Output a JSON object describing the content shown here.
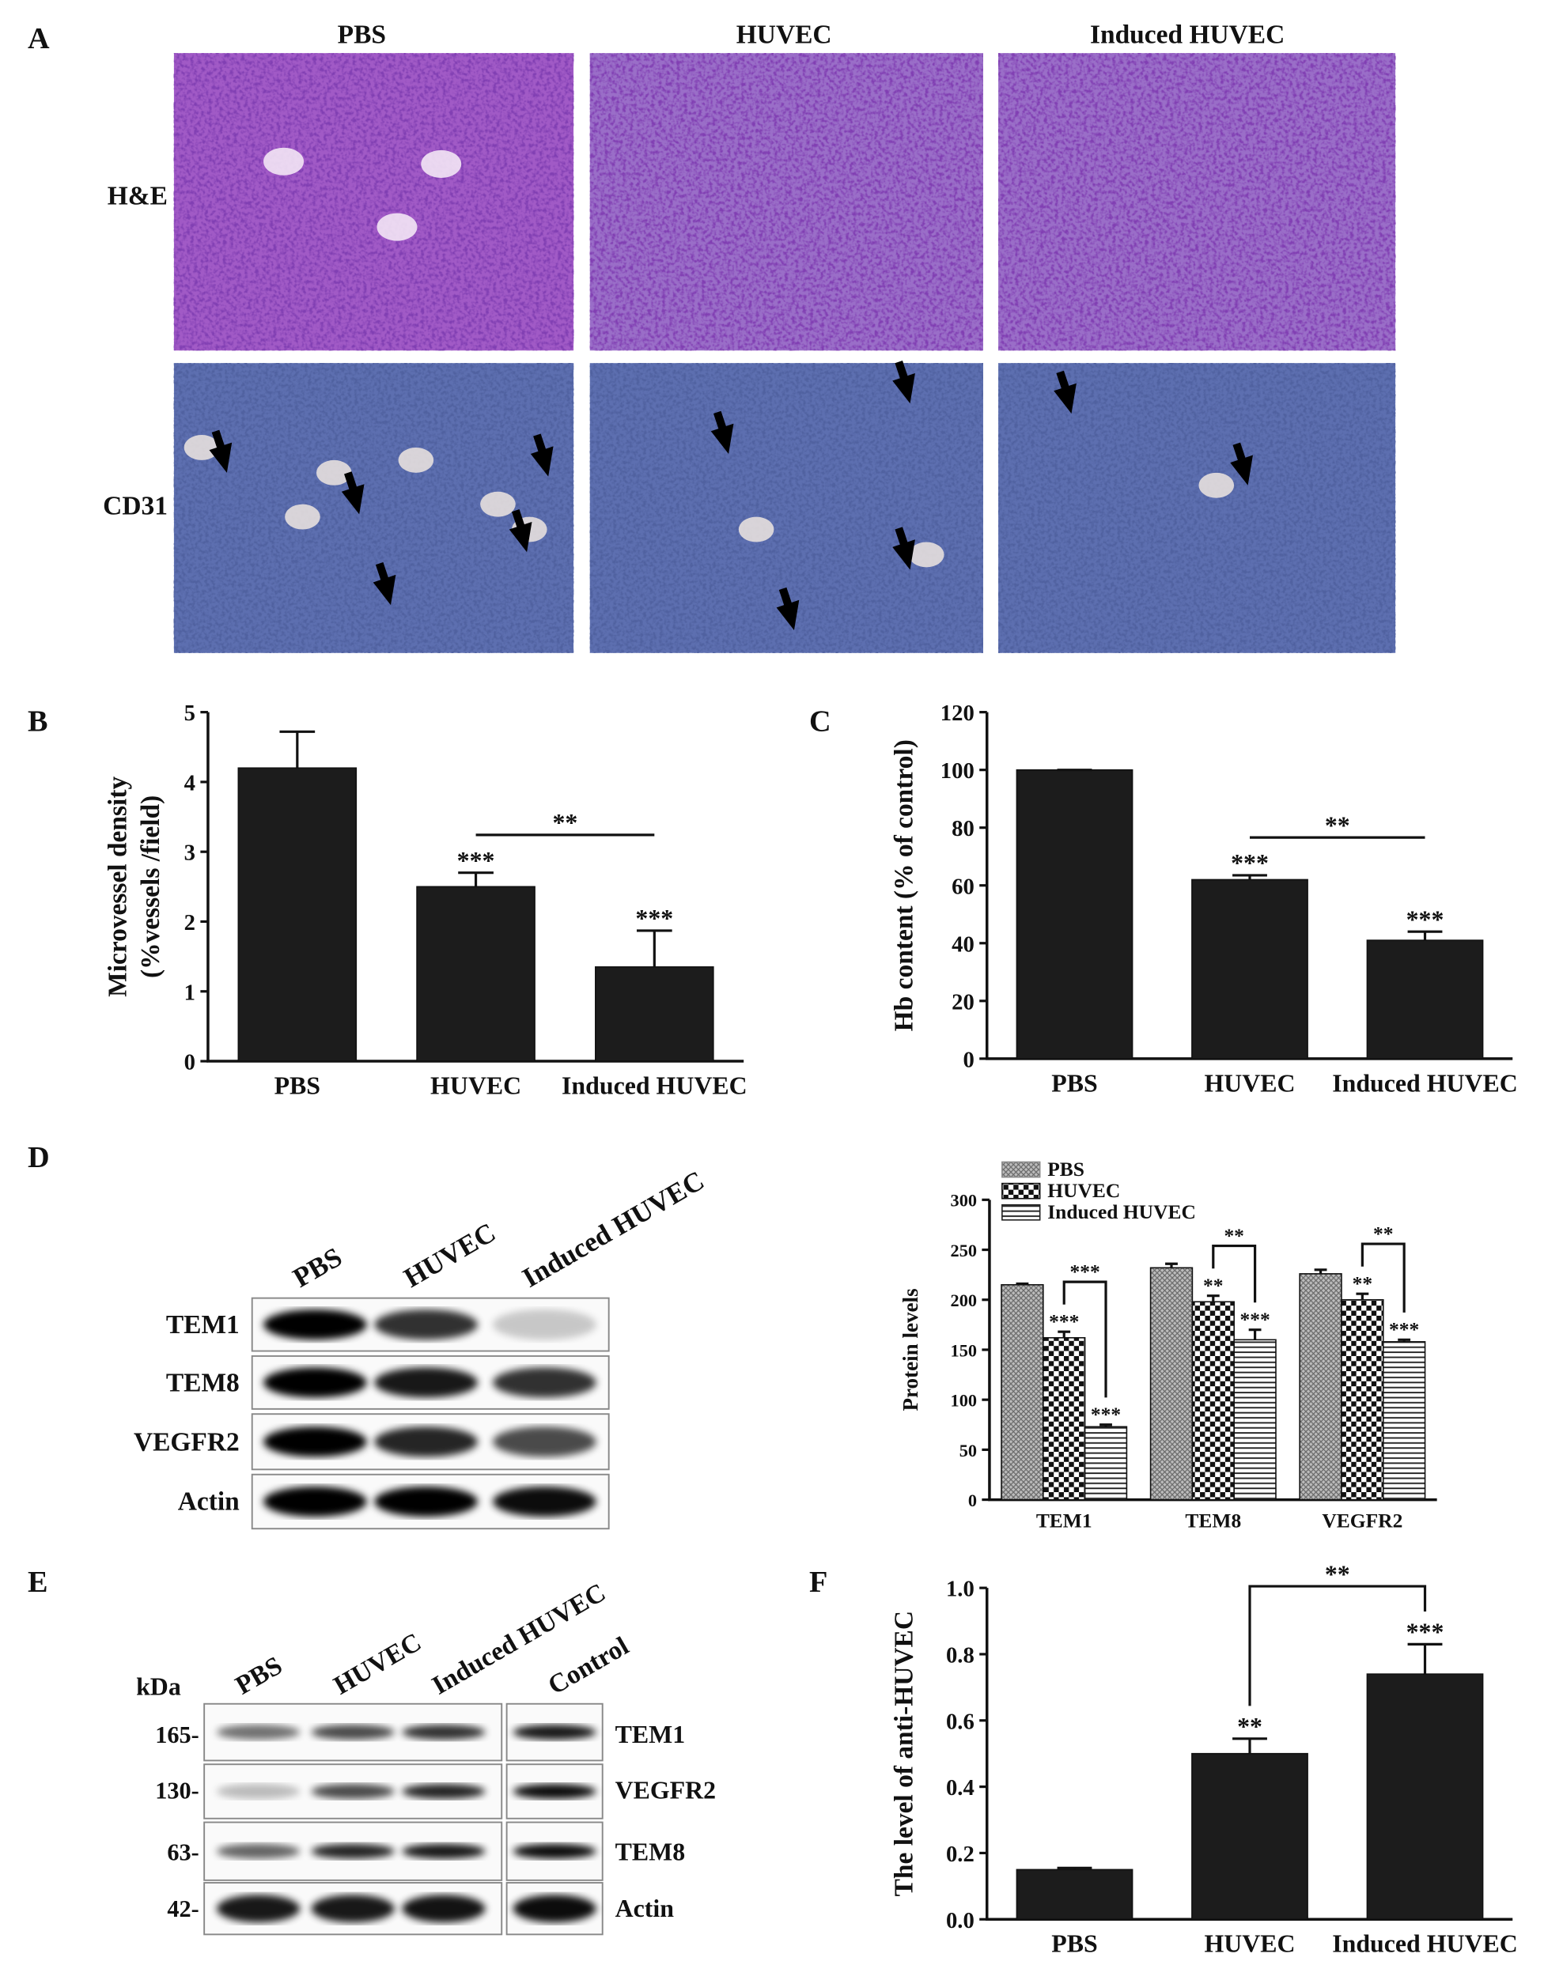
{
  "panel_a": {
    "label": "A",
    "columns": [
      "PBS",
      "HUVEC",
      "Induced HUVEC"
    ],
    "rows": [
      "H&E",
      "CD31"
    ]
  },
  "panel_d_blot": {
    "label": "D",
    "lanes": [
      "PBS",
      "HUVEC",
      "Induced HUVEC"
    ],
    "proteins": [
      "TEM1",
      "TEM8",
      "VEGFR2",
      "Actin"
    ]
  },
  "panel_e_blot": {
    "label": "E",
    "unit": "kDa",
    "lanes": [
      "PBS",
      "HUVEC",
      "Induced HUVEC",
      "Control"
    ],
    "markers": [
      "165-",
      "130-",
      "63-",
      "42-"
    ],
    "proteins": [
      "TEM1",
      "VEGFR2",
      "TEM8",
      "Actin"
    ]
  },
  "chart_data": [
    {
      "type": "bar",
      "label": "B",
      "ylabel": [
        "Microvessel density",
        "(%vessels /field)"
      ],
      "categories": [
        "PBS",
        "HUVEC",
        "Induced HUVEC"
      ],
      "values": [
        4.2,
        2.5,
        1.35
      ],
      "errors": [
        0.52,
        0.2,
        0.52
      ],
      "color": "#1c1c1c",
      "ylim": [
        0,
        5
      ],
      "yticks": [
        0,
        1,
        2,
        3,
        4,
        5
      ],
      "annotations": [
        {
          "text": "***",
          "category": "HUVEC"
        },
        {
          "text": "***",
          "category": "Induced HUVEC"
        },
        {
          "text": "**",
          "from": "HUVEC",
          "to": "Induced HUVEC",
          "style": "line"
        }
      ]
    },
    {
      "type": "bar",
      "label": "C",
      "ylabel": [
        "Hb content (% of control)"
      ],
      "categories": [
        "PBS",
        "HUVEC",
        "Induced HUVEC"
      ],
      "values": [
        100,
        62,
        41
      ],
      "errors": [
        0,
        1.5,
        3
      ],
      "color": "#1c1c1c",
      "ylim": [
        0,
        120
      ],
      "yticks": [
        0,
        20,
        40,
        60,
        80,
        100,
        120
      ],
      "annotations": [
        {
          "text": "***",
          "category": "HUVEC"
        },
        {
          "text": "***",
          "category": "Induced HUVEC"
        },
        {
          "text": "**",
          "from": "HUVEC",
          "to": "Induced HUVEC",
          "style": "line"
        }
      ]
    },
    {
      "type": "grouped_bar",
      "ylabel": [
        "Protein levels"
      ],
      "categories": [
        "TEM1",
        "TEM8",
        "VEGFR2"
      ],
      "series": [
        {
          "name": "PBS",
          "color": "#8a8a8a",
          "pattern": "crosshatch",
          "values": [
            215,
            232,
            226
          ],
          "errors": [
            1,
            4,
            4
          ]
        },
        {
          "name": "HUVEC",
          "color": "#111111",
          "pattern": "checker",
          "values": [
            162,
            198,
            200
          ],
          "errors": [
            6,
            6,
            6
          ]
        },
        {
          "name": "Induced HUVEC",
          "color": "#222222",
          "pattern": "hlines",
          "values": [
            73,
            160,
            158
          ],
          "errors": [
            2,
            10,
            2
          ]
        }
      ],
      "legend": "upper left",
      "ylim": [
        0,
        300
      ],
      "yticks": [
        0,
        50,
        100,
        150,
        200,
        250,
        300
      ],
      "annotations": [
        {
          "text": "***",
          "category": "TEM1",
          "series": "HUVEC"
        },
        {
          "text": "***",
          "category": "TEM1",
          "series": "Induced HUVEC"
        },
        {
          "text": "***",
          "category": "TEM1",
          "from": "HUVEC",
          "to": "Induced HUVEC",
          "style": "legs"
        },
        {
          "text": "**",
          "category": "TEM8",
          "series": "HUVEC"
        },
        {
          "text": "***",
          "category": "TEM8",
          "series": "Induced HUVEC"
        },
        {
          "text": "**",
          "category": "TEM8",
          "from": "HUVEC",
          "to": "Induced HUVEC",
          "style": "legs"
        },
        {
          "text": "**",
          "category": "VEGFR2",
          "series": "HUVEC"
        },
        {
          "text": "***",
          "category": "VEGFR2",
          "series": "Induced HUVEC"
        },
        {
          "text": "**",
          "category": "VEGFR2",
          "from": "HUVEC",
          "to": "Induced HUVEC",
          "style": "legs"
        }
      ]
    },
    {
      "type": "bar",
      "label": "F",
      "ylabel": [
        "The level of anti-HUVEC"
      ],
      "categories": [
        "PBS",
        "HUVEC",
        "Induced HUVEC"
      ],
      "values": [
        0.15,
        0.5,
        0.74
      ],
      "errors": [
        0.005,
        0.045,
        0.09
      ],
      "color": "#1c1c1c",
      "ylim": [
        0,
        1.0
      ],
      "yticks": [
        {
          "value": 0,
          "label": "0.0"
        },
        0.2,
        0.4,
        0.6,
        0.8,
        {
          "value": 1.0,
          "label": "1.0"
        }
      ],
      "annotations": [
        {
          "text": "**",
          "category": "HUVEC"
        },
        {
          "text": "***",
          "category": "Induced HUVEC"
        },
        {
          "text": "**",
          "from": "HUVEC",
          "to": "Induced HUVEC",
          "style": "legs"
        }
      ]
    }
  ]
}
